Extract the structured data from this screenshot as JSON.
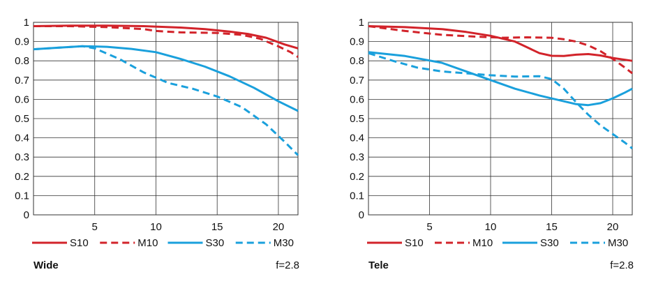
{
  "colors": {
    "red": "#d2232a",
    "blue": "#1aa0dc",
    "grid": "#333333"
  },
  "chart_data": [
    {
      "type": "line",
      "name": "Wide",
      "label": "Wide",
      "aperture": "f=2.8",
      "xlim": [
        0,
        21.6
      ],
      "ylim": [
        0,
        1
      ],
      "xticks": [
        5,
        10,
        15,
        20
      ],
      "yticks": [
        0,
        0.1,
        0.2,
        0.3,
        0.4,
        0.5,
        0.6,
        0.7,
        0.8,
        0.9,
        1
      ],
      "ytick_labels": [
        "0",
        "0.1",
        "0.2",
        "0.3",
        "0.4",
        "0.5",
        "0.6",
        "0.7",
        "0.8",
        "0.9",
        "1"
      ],
      "series": [
        {
          "name": "S10",
          "color": "red",
          "dash": false,
          "x": [
            0,
            3,
            6,
            9,
            12,
            14,
            16,
            17.5,
            19,
            20.5,
            21.6
          ],
          "y": [
            0.98,
            0.983,
            0.983,
            0.98,
            0.973,
            0.965,
            0.952,
            0.94,
            0.92,
            0.885,
            0.865
          ]
        },
        {
          "name": "M10",
          "color": "red",
          "dash": true,
          "x": [
            0,
            3,
            6,
            9,
            10,
            12,
            15,
            17,
            18.5,
            20,
            21,
            21.6
          ],
          "y": [
            0.98,
            0.98,
            0.975,
            0.965,
            0.955,
            0.948,
            0.945,
            0.935,
            0.915,
            0.875,
            0.845,
            0.82
          ]
        },
        {
          "name": "S30",
          "color": "blue",
          "dash": false,
          "x": [
            0,
            2,
            4,
            6,
            8,
            10,
            12,
            14,
            16,
            18,
            20,
            21.6
          ],
          "y": [
            0.86,
            0.868,
            0.876,
            0.873,
            0.862,
            0.845,
            0.81,
            0.77,
            0.72,
            0.66,
            0.59,
            0.54
          ]
        },
        {
          "name": "M30",
          "color": "blue",
          "dash": true,
          "x": [
            0,
            2,
            4,
            5,
            7,
            9,
            11,
            13,
            15,
            17,
            19,
            20.5,
            21.6
          ],
          "y": [
            0.86,
            0.868,
            0.876,
            0.865,
            0.81,
            0.74,
            0.685,
            0.655,
            0.615,
            0.56,
            0.47,
            0.38,
            0.31
          ]
        }
      ]
    },
    {
      "type": "line",
      "name": "Tele",
      "label": "Tele",
      "aperture": "f=2.8",
      "xlim": [
        0,
        21.6
      ],
      "ylim": [
        0,
        1
      ],
      "xticks": [
        5,
        10,
        15,
        20
      ],
      "yticks": [
        0,
        0.1,
        0.2,
        0.3,
        0.4,
        0.5,
        0.6,
        0.7,
        0.8,
        0.9,
        1
      ],
      "ytick_labels": [
        "0",
        "0.1",
        "0.2",
        "0.3",
        "0.4",
        "0.5",
        "0.6",
        "0.7",
        "0.8",
        "0.9",
        "1"
      ],
      "series": [
        {
          "name": "S10",
          "color": "red",
          "dash": false,
          "x": [
            0,
            3,
            6,
            8,
            10,
            12,
            13,
            14,
            15,
            16,
            17,
            18,
            19,
            20,
            21.6
          ],
          "y": [
            0.98,
            0.975,
            0.965,
            0.95,
            0.93,
            0.9,
            0.87,
            0.84,
            0.826,
            0.825,
            0.832,
            0.835,
            0.828,
            0.815,
            0.8
          ]
        },
        {
          "name": "M10",
          "color": "red",
          "dash": true,
          "x": [
            0,
            3,
            6,
            9,
            11,
            13,
            15,
            16,
            17,
            18,
            19,
            20,
            21,
            21.6
          ],
          "y": [
            0.98,
            0.955,
            0.935,
            0.925,
            0.92,
            0.922,
            0.92,
            0.912,
            0.9,
            0.88,
            0.85,
            0.81,
            0.765,
            0.735
          ]
        },
        {
          "name": "S30",
          "color": "blue",
          "dash": false,
          "x": [
            0,
            3,
            6,
            8,
            10,
            12,
            14,
            16,
            17,
            18,
            19,
            20,
            21,
            21.6
          ],
          "y": [
            0.845,
            0.825,
            0.79,
            0.745,
            0.7,
            0.655,
            0.62,
            0.59,
            0.575,
            0.57,
            0.58,
            0.605,
            0.635,
            0.655
          ]
        },
        {
          "name": "M30",
          "color": "blue",
          "dash": true,
          "x": [
            0,
            2,
            4,
            6,
            8,
            10,
            12,
            14,
            15,
            16,
            17,
            18,
            19,
            20,
            21,
            21.6
          ],
          "y": [
            0.84,
            0.8,
            0.765,
            0.745,
            0.735,
            0.725,
            0.718,
            0.72,
            0.705,
            0.655,
            0.585,
            0.52,
            0.465,
            0.42,
            0.375,
            0.345
          ]
        }
      ]
    }
  ]
}
